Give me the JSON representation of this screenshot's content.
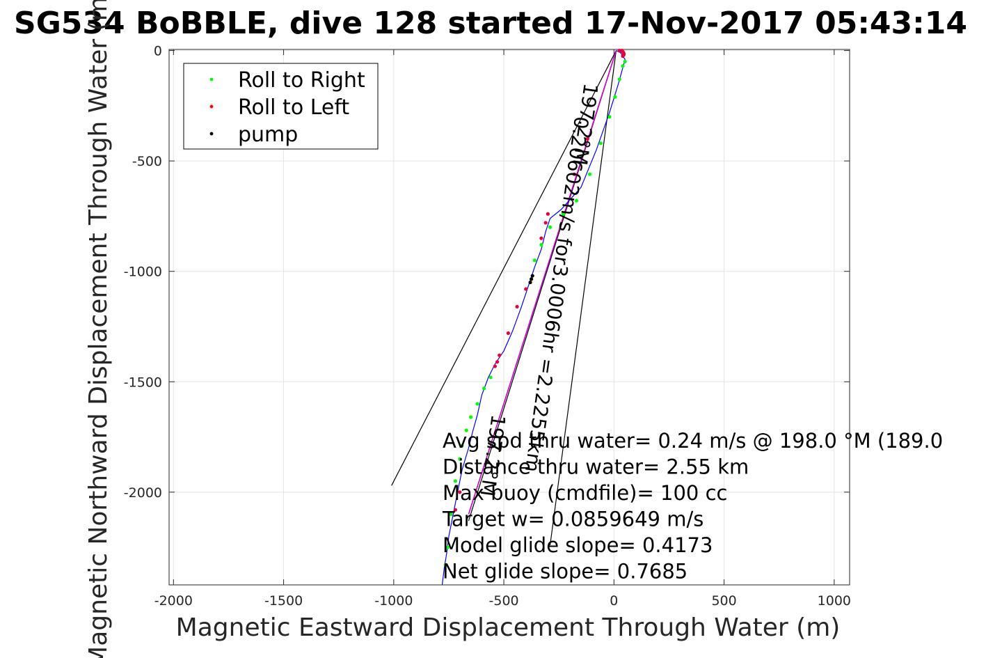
{
  "chart_data": {
    "type": "scatter",
    "title": "SG534 BoBBLE, dive 128 started 17-Nov-2017 05:43:14",
    "xlabel": "Magnetic Eastward Displacement Through Water (m)",
    "ylabel": "Magnetic Northward Displacement Through Water (m)",
    "xlim": [
      -2020,
      1070
    ],
    "ylim": [
      -2420,
      5
    ],
    "xticks": [
      -2000,
      -1500,
      -1000,
      -500,
      0,
      500,
      1000
    ],
    "xtick_labels": [
      "-2000",
      "-1500",
      "-1000",
      "-500",
      "0",
      "500",
      "1000"
    ],
    "yticks": [
      0,
      -500,
      -1000,
      -1500,
      -2000
    ],
    "ytick_labels": [
      "0",
      "-500",
      "-1000",
      "-1500",
      "-2000"
    ],
    "grid": true,
    "legend": {
      "placement": "top-left",
      "entries": [
        {
          "name": "Roll to Right",
          "color": "#00ff00"
        },
        {
          "name": "Roll to Left",
          "color": "#ff0000"
        },
        {
          "name": "pump",
          "color": "#000000"
        }
      ]
    },
    "track": {
      "color": "#0000ff",
      "x": [
        10,
        30,
        50,
        45,
        20,
        -20,
        -80,
        -150,
        -240,
        -290,
        -310,
        -330,
        -360,
        -380,
        -420,
        -460,
        -500,
        -540,
        -570,
        -600,
        -620,
        -640,
        -660,
        -690,
        -710,
        -730,
        -750,
        -760,
        -770,
        -780
      ],
      "y": [
        0,
        -10,
        -40,
        -60,
        -150,
        -280,
        -450,
        -620,
        -720,
        -760,
        -820,
        -900,
        -980,
        -1040,
        -1160,
        -1270,
        -1360,
        -1420,
        -1480,
        -1560,
        -1650,
        -1720,
        -1800,
        -1900,
        -2000,
        -2100,
        -2200,
        -2280,
        -2340,
        -2420
      ]
    },
    "series": [
      {
        "name": "Roll to Right",
        "color": "#00ff00",
        "x": [
          50,
          40,
          25,
          5,
          -20,
          -60,
          -110,
          -170,
          -230,
          -290,
          -330,
          -360,
          -560,
          -590,
          -620,
          -650,
          -670,
          -690,
          -700,
          -720,
          -740,
          -755,
          -765
        ],
        "y": [
          -50,
          -70,
          -130,
          -210,
          -300,
          -420,
          -560,
          -680,
          -740,
          -800,
          -880,
          -950,
          -1480,
          -1530,
          -1600,
          -1660,
          -1720,
          -1790,
          -1850,
          -1950,
          -2100,
          -2250,
          -2330
        ]
      },
      {
        "name": "Roll to Left",
        "color": "#e6003c",
        "x": [
          25,
          30,
          35,
          40,
          43,
          45,
          44,
          40,
          -120,
          -180,
          -300,
          -310,
          -330,
          -400,
          -440,
          -480,
          -520,
          -530,
          -540,
          -700,
          -720
        ],
        "y": [
          0,
          -2,
          0,
          -5,
          -10,
          -15,
          -20,
          -25,
          -400,
          -560,
          -740,
          -780,
          -850,
          -1080,
          -1160,
          -1280,
          -1380,
          -1410,
          -1430,
          -2000,
          -2080
        ]
      },
      {
        "name": "pump",
        "color": "#000000",
        "x": [
          -370,
          -375,
          -380
        ],
        "y": [
          -1020,
          -1035,
          -1050
        ]
      }
    ],
    "current_line": {
      "color": "#cc00cc",
      "x": [
        10,
        -660
      ],
      "y": [
        0,
        -2100
      ]
    },
    "vectors": [
      {
        "x": [
          10,
          -1010
        ],
        "y": [
          0,
          -1970
        ]
      },
      {
        "x": [
          10,
          -290
        ],
        "y": [
          0,
          -2240
        ]
      },
      {
        "x": [
          10,
          -660
        ],
        "y": [
          0,
          -2130
        ]
      }
    ],
    "rotated_labels": [
      {
        "text": "197.2°M",
        "x": -160,
        "y": -330,
        "angle": 98
      },
      {
        "text": "0.20602m/s for3.0006hr =2.2255km",
        "x": -290,
        "y": -1100,
        "angle": 98
      },
      {
        "text": "197.2°M",
        "x": -580,
        "y": -1830,
        "angle": 98
      }
    ],
    "annotations": [
      "Avg spd thru water=  0.24 m/s @ 198.0 °M (189.0",
      "Distance thru water=  2.55 km",
      "Max buoy (cmdfile)= 100 cc",
      "Target w= 0.0859649 m/s",
      "Model glide slope= 0.4173",
      "Net glide slope= 0.7685"
    ]
  }
}
